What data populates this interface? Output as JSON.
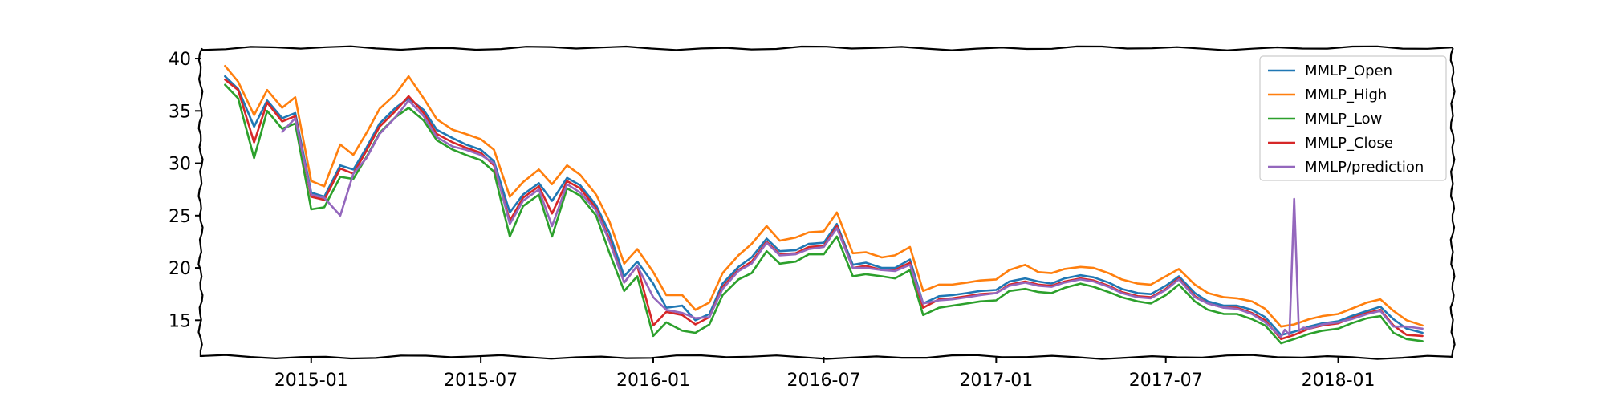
{
  "chart_data": {
    "type": "line",
    "title": "",
    "xlabel": "",
    "ylabel": "",
    "xlim": [
      "2014-09-05",
      "2018-05-03"
    ],
    "ylim": [
      11.5,
      41.0
    ],
    "grid": false,
    "legend_position": "top-right",
    "x_ticks": [
      "2015-01",
      "2015-07",
      "2016-01",
      "2016-07",
      "2017-01",
      "2017-07",
      "2018-01"
    ],
    "x_tick_dates": [
      "2015-01-01",
      "2015-07-01",
      "2016-01-01",
      "2016-07-01",
      "2017-01-01",
      "2017-07-01",
      "2018-01-01"
    ],
    "y_ticks": [
      15,
      20,
      25,
      30,
      35,
      40
    ],
    "series": [
      {
        "name": "MMLP_Open",
        "color": "#1f77b4",
        "x": [
          "2014-10-01",
          "2014-10-15",
          "2014-11-01",
          "2014-11-15",
          "2014-12-01",
          "2014-12-15",
          "2015-01-01",
          "2015-01-15",
          "2015-02-01",
          "2015-02-15",
          "2015-03-01",
          "2015-03-15",
          "2015-04-01",
          "2015-04-15",
          "2015-05-01",
          "2015-05-15",
          "2015-06-01",
          "2015-06-15",
          "2015-07-01",
          "2015-07-15",
          "2015-08-01",
          "2015-08-15",
          "2015-09-01",
          "2015-09-15",
          "2015-10-01",
          "2015-10-15",
          "2015-11-01",
          "2015-11-15",
          "2015-12-01",
          "2015-12-15",
          "2016-01-01",
          "2016-01-15",
          "2016-02-01",
          "2016-02-15",
          "2016-03-01",
          "2016-03-15",
          "2016-04-01",
          "2016-04-15",
          "2016-05-01",
          "2016-05-15",
          "2016-06-01",
          "2016-06-15",
          "2016-07-01",
          "2016-07-15",
          "2016-08-01",
          "2016-08-15",
          "2016-09-01",
          "2016-09-15",
          "2016-10-01",
          "2016-10-15",
          "2016-11-01",
          "2016-11-15",
          "2016-12-01",
          "2016-12-15",
          "2017-01-01",
          "2017-01-15",
          "2017-02-01",
          "2017-02-15",
          "2017-03-01",
          "2017-03-15",
          "2017-04-01",
          "2017-04-15",
          "2017-05-01",
          "2017-05-15",
          "2017-06-01",
          "2017-06-15",
          "2017-07-01",
          "2017-07-15",
          "2017-08-01",
          "2017-08-15",
          "2017-09-01",
          "2017-09-15",
          "2017-10-01",
          "2017-10-15",
          "2017-11-01",
          "2017-11-15",
          "2017-12-01",
          "2017-12-15",
          "2018-01-01",
          "2018-01-15",
          "2018-02-01",
          "2018-02-15",
          "2018-03-01",
          "2018-03-15",
          "2018-04-01"
        ],
        "values": [
          38.3,
          37.1,
          33.5,
          36.0,
          34.3,
          34.8,
          27.2,
          26.8,
          29.8,
          29.4,
          31.5,
          33.8,
          35.3,
          36.2,
          35.1,
          33.2,
          32.4,
          31.8,
          31.3,
          30.2,
          25.3,
          27.0,
          28.1,
          26.4,
          28.6,
          27.9,
          26.0,
          23.4,
          19.2,
          20.6,
          18.5,
          16.2,
          16.4,
          15.0,
          15.6,
          18.5,
          20.1,
          21.0,
          22.8,
          21.6,
          21.7,
          22.3,
          22.4,
          24.2,
          20.3,
          20.5,
          20.0,
          20.0,
          20.8,
          16.6,
          17.3,
          17.4,
          17.6,
          17.8,
          17.9,
          18.7,
          19.0,
          18.7,
          18.5,
          19.0,
          19.3,
          19.1,
          18.6,
          18.0,
          17.6,
          17.5,
          18.3,
          19.2,
          17.6,
          16.8,
          16.4,
          16.4,
          16.0,
          15.3,
          13.6,
          13.9,
          14.4,
          14.7,
          14.9,
          15.4,
          15.9,
          16.3,
          15.1,
          14.2,
          13.8
        ]
      },
      {
        "name": "MMLP_High",
        "color": "#ff7f0e",
        "x": [
          "2014-10-01",
          "2014-10-15",
          "2014-11-01",
          "2014-11-15",
          "2014-12-01",
          "2014-12-15",
          "2015-01-01",
          "2015-01-15",
          "2015-02-01",
          "2015-02-15",
          "2015-03-01",
          "2015-03-15",
          "2015-04-01",
          "2015-04-15",
          "2015-05-01",
          "2015-05-15",
          "2015-06-01",
          "2015-06-15",
          "2015-07-01",
          "2015-07-15",
          "2015-08-01",
          "2015-08-15",
          "2015-09-01",
          "2015-09-15",
          "2015-10-01",
          "2015-10-15",
          "2015-11-01",
          "2015-11-15",
          "2015-12-01",
          "2015-12-15",
          "2016-01-01",
          "2016-01-15",
          "2016-02-01",
          "2016-02-15",
          "2016-03-01",
          "2016-03-15",
          "2016-04-01",
          "2016-04-15",
          "2016-05-01",
          "2016-05-15",
          "2016-06-01",
          "2016-06-15",
          "2016-07-01",
          "2016-07-15",
          "2016-08-01",
          "2016-08-15",
          "2016-09-01",
          "2016-09-15",
          "2016-10-01",
          "2016-10-15",
          "2016-11-01",
          "2016-11-15",
          "2016-12-01",
          "2016-12-15",
          "2017-01-01",
          "2017-01-15",
          "2017-02-01",
          "2017-02-15",
          "2017-03-01",
          "2017-03-15",
          "2017-04-01",
          "2017-04-15",
          "2017-05-01",
          "2017-05-15",
          "2017-06-01",
          "2017-06-15",
          "2017-07-01",
          "2017-07-15",
          "2017-08-01",
          "2017-08-15",
          "2017-09-01",
          "2017-09-15",
          "2017-10-01",
          "2017-10-15",
          "2017-11-01",
          "2017-11-15",
          "2017-12-01",
          "2017-12-15",
          "2018-01-01",
          "2018-01-15",
          "2018-02-01",
          "2018-02-15",
          "2018-03-01",
          "2018-03-15",
          "2018-04-01"
        ],
        "values": [
          39.3,
          37.8,
          34.6,
          37.0,
          35.3,
          36.3,
          28.3,
          27.8,
          31.8,
          30.8,
          32.9,
          35.2,
          36.6,
          38.3,
          36.2,
          34.2,
          33.2,
          32.8,
          32.3,
          31.3,
          26.8,
          28.2,
          29.4,
          28.0,
          29.8,
          28.9,
          27.0,
          24.5,
          20.4,
          21.8,
          19.6,
          17.4,
          17.4,
          16.0,
          16.7,
          19.5,
          21.2,
          22.3,
          24.0,
          22.6,
          22.9,
          23.4,
          23.5,
          25.3,
          21.4,
          21.5,
          21.0,
          21.2,
          22.0,
          17.8,
          18.4,
          18.4,
          18.6,
          18.8,
          18.9,
          19.8,
          20.3,
          19.6,
          19.5,
          19.9,
          20.1,
          20.0,
          19.5,
          18.9,
          18.5,
          18.4,
          19.2,
          19.9,
          18.4,
          17.6,
          17.2,
          17.1,
          16.8,
          16.1,
          14.4,
          14.6,
          15.1,
          15.4,
          15.6,
          16.1,
          16.7,
          17.0,
          15.9,
          15.0,
          14.5
        ]
      },
      {
        "name": "MMLP_Low",
        "color": "#2ca02c",
        "x": [
          "2014-10-01",
          "2014-10-15",
          "2014-11-01",
          "2014-11-15",
          "2014-12-01",
          "2014-12-15",
          "2015-01-01",
          "2015-01-15",
          "2015-02-01",
          "2015-02-15",
          "2015-03-01",
          "2015-03-15",
          "2015-04-01",
          "2015-04-15",
          "2015-05-01",
          "2015-05-15",
          "2015-06-01",
          "2015-06-15",
          "2015-07-01",
          "2015-07-15",
          "2015-08-01",
          "2015-08-15",
          "2015-09-01",
          "2015-09-15",
          "2015-10-01",
          "2015-10-15",
          "2015-11-01",
          "2015-11-15",
          "2015-12-01",
          "2015-12-15",
          "2016-01-01",
          "2016-01-15",
          "2016-02-01",
          "2016-02-15",
          "2016-03-01",
          "2016-03-15",
          "2016-04-01",
          "2016-04-15",
          "2016-05-01",
          "2016-05-15",
          "2016-06-01",
          "2016-06-15",
          "2016-07-01",
          "2016-07-15",
          "2016-08-01",
          "2016-08-15",
          "2016-09-01",
          "2016-09-15",
          "2016-10-01",
          "2016-10-15",
          "2016-11-01",
          "2016-11-15",
          "2016-12-01",
          "2016-12-15",
          "2017-01-01",
          "2017-01-15",
          "2017-02-01",
          "2017-02-15",
          "2017-03-01",
          "2017-03-15",
          "2017-04-01",
          "2017-04-15",
          "2017-05-01",
          "2017-05-15",
          "2017-06-01",
          "2017-06-15",
          "2017-07-01",
          "2017-07-15",
          "2017-08-01",
          "2017-08-15",
          "2017-09-01",
          "2017-09-15",
          "2017-10-01",
          "2017-10-15",
          "2017-11-01",
          "2017-11-15",
          "2017-12-01",
          "2017-12-15",
          "2018-01-01",
          "2018-01-15",
          "2018-02-01",
          "2018-02-15",
          "2018-03-01",
          "2018-03-15",
          "2018-04-01"
        ],
        "values": [
          37.5,
          36.2,
          30.5,
          35.0,
          33.3,
          33.8,
          25.6,
          25.8,
          28.7,
          28.5,
          30.6,
          32.9,
          34.4,
          35.3,
          34.1,
          32.2,
          31.3,
          30.8,
          30.3,
          29.2,
          23.0,
          25.9,
          27.0,
          23.0,
          27.6,
          26.9,
          25.0,
          21.5,
          17.8,
          19.2,
          13.5,
          14.8,
          14.0,
          13.8,
          14.6,
          17.4,
          18.9,
          19.5,
          21.6,
          20.4,
          20.6,
          21.3,
          21.3,
          23.0,
          19.2,
          19.4,
          19.2,
          19.0,
          19.8,
          15.5,
          16.2,
          16.4,
          16.6,
          16.8,
          16.9,
          17.8,
          18.0,
          17.7,
          17.6,
          18.1,
          18.5,
          18.2,
          17.7,
          17.2,
          16.8,
          16.6,
          17.4,
          18.4,
          16.8,
          16.0,
          15.6,
          15.6,
          15.1,
          14.5,
          12.8,
          13.2,
          13.7,
          14.0,
          14.2,
          14.7,
          15.2,
          15.4,
          13.8,
          13.2,
          13.0
        ]
      },
      {
        "name": "MMLP_Close",
        "color": "#d62728",
        "x": [
          "2014-10-01",
          "2014-10-15",
          "2014-11-01",
          "2014-11-15",
          "2014-12-01",
          "2014-12-15",
          "2015-01-01",
          "2015-01-15",
          "2015-02-01",
          "2015-02-15",
          "2015-03-01",
          "2015-03-15",
          "2015-04-01",
          "2015-04-15",
          "2015-05-01",
          "2015-05-15",
          "2015-06-01",
          "2015-06-15",
          "2015-07-01",
          "2015-07-15",
          "2015-08-01",
          "2015-08-15",
          "2015-09-01",
          "2015-09-15",
          "2015-10-01",
          "2015-10-15",
          "2015-11-01",
          "2015-11-15",
          "2015-12-01",
          "2015-12-15",
          "2016-01-01",
          "2016-01-15",
          "2016-02-01",
          "2016-02-15",
          "2016-03-01",
          "2016-03-15",
          "2016-04-01",
          "2016-04-15",
          "2016-05-01",
          "2016-05-15",
          "2016-06-01",
          "2016-06-15",
          "2016-07-01",
          "2016-07-15",
          "2016-08-01",
          "2016-08-15",
          "2016-09-01",
          "2016-09-15",
          "2016-10-01",
          "2016-10-15",
          "2016-11-01",
          "2016-11-15",
          "2016-12-01",
          "2016-12-15",
          "2017-01-01",
          "2017-01-15",
          "2017-02-01",
          "2017-02-15",
          "2017-03-01",
          "2017-03-15",
          "2017-04-01",
          "2017-04-15",
          "2017-05-01",
          "2017-05-15",
          "2017-06-01",
          "2017-06-15",
          "2017-07-01",
          "2017-07-15",
          "2017-08-01",
          "2017-08-15",
          "2017-09-01",
          "2017-09-15",
          "2017-10-01",
          "2017-10-15",
          "2017-11-01",
          "2017-11-15",
          "2017-12-01",
          "2017-12-15",
          "2018-01-01",
          "2018-01-15",
          "2018-02-01",
          "2018-02-15",
          "2018-03-01",
          "2018-03-15",
          "2018-04-01"
        ],
        "values": [
          38.0,
          37.0,
          32.0,
          35.8,
          34.0,
          34.5,
          26.8,
          26.5,
          29.5,
          29.0,
          31.2,
          33.5,
          35.0,
          36.4,
          34.8,
          32.8,
          32.0,
          31.5,
          31.0,
          29.8,
          24.5,
          26.7,
          27.8,
          25.2,
          28.3,
          27.6,
          25.7,
          22.8,
          18.6,
          20.2,
          14.5,
          15.8,
          15.5,
          14.6,
          15.3,
          18.2,
          19.8,
          20.6,
          22.5,
          21.3,
          21.4,
          22.0,
          22.1,
          24.0,
          20.0,
          20.2,
          19.8,
          19.8,
          20.5,
          16.2,
          17.0,
          17.1,
          17.3,
          17.5,
          17.6,
          18.4,
          18.7,
          18.4,
          18.3,
          18.7,
          19.0,
          18.8,
          18.3,
          17.7,
          17.3,
          17.2,
          18.0,
          19.0,
          17.3,
          16.6,
          16.2,
          16.2,
          15.7,
          15.0,
          13.2,
          13.6,
          14.2,
          14.5,
          14.7,
          15.2,
          15.7,
          16.0,
          14.5,
          13.6,
          13.5
        ]
      },
      {
        "name": "MMLP/prediction",
        "color": "#9467bd",
        "x": [
          "2014-12-01",
          "2014-12-15",
          "2015-01-01",
          "2015-01-15",
          "2015-02-01",
          "2015-02-15",
          "2015-03-01",
          "2015-03-15",
          "2015-04-01",
          "2015-04-15",
          "2015-05-01",
          "2015-05-15",
          "2015-06-01",
          "2015-06-15",
          "2015-07-01",
          "2015-07-15",
          "2015-08-01",
          "2015-08-15",
          "2015-09-01",
          "2015-09-15",
          "2015-10-01",
          "2015-10-15",
          "2015-11-01",
          "2015-11-15",
          "2015-12-01",
          "2015-12-15",
          "2016-01-01",
          "2016-01-15",
          "2016-02-01",
          "2016-02-15",
          "2016-03-01",
          "2016-03-15",
          "2016-04-01",
          "2016-04-15",
          "2016-05-01",
          "2016-05-15",
          "2016-06-01",
          "2016-06-15",
          "2016-07-01",
          "2016-07-15",
          "2016-08-01",
          "2016-08-15",
          "2016-09-01",
          "2016-09-15",
          "2016-10-01",
          "2016-10-15",
          "2016-11-01",
          "2016-11-15",
          "2016-12-01",
          "2016-12-15",
          "2017-01-01",
          "2017-01-15",
          "2017-02-01",
          "2017-02-15",
          "2017-03-01",
          "2017-03-15",
          "2017-04-01",
          "2017-04-15",
          "2017-05-01",
          "2017-05-15",
          "2017-06-01",
          "2017-06-15",
          "2017-07-01",
          "2017-07-15",
          "2017-08-01",
          "2017-08-15",
          "2017-09-01",
          "2017-09-15",
          "2017-10-01",
          "2017-10-15",
          "2017-11-01",
          "2017-11-05",
          "2017-11-10",
          "2017-11-15",
          "2017-11-20",
          "2017-11-25",
          "2017-12-01",
          "2017-12-15",
          "2018-01-01",
          "2018-01-15",
          "2018-02-01",
          "2018-02-15",
          "2018-03-01",
          "2018-03-15",
          "2018-04-01"
        ],
        "values": [
          33.0,
          34.3,
          27.0,
          26.7,
          25.0,
          29.0,
          30.5,
          32.8,
          34.4,
          36.0,
          34.5,
          32.5,
          31.6,
          31.3,
          30.8,
          30.0,
          24.2,
          26.4,
          27.5,
          24.0,
          28.0,
          27.2,
          25.5,
          22.6,
          18.6,
          20.2,
          17.2,
          16.0,
          15.7,
          15.2,
          15.3,
          18.0,
          19.7,
          20.4,
          22.4,
          21.2,
          21.3,
          21.8,
          22.0,
          23.8,
          20.0,
          20.0,
          19.8,
          19.7,
          20.3,
          16.6,
          16.9,
          17.0,
          17.2,
          17.4,
          17.6,
          18.3,
          18.6,
          18.3,
          18.2,
          18.6,
          18.9,
          18.7,
          18.2,
          17.6,
          17.2,
          17.1,
          17.9,
          18.9,
          17.2,
          16.6,
          16.2,
          16.1,
          15.6,
          14.8,
          13.4,
          14.1,
          13.6,
          26.6,
          14.0,
          14.3,
          14.2,
          14.6,
          14.8,
          15.1,
          15.6,
          15.9,
          14.4,
          14.4,
          14.2
        ]
      }
    ]
  }
}
